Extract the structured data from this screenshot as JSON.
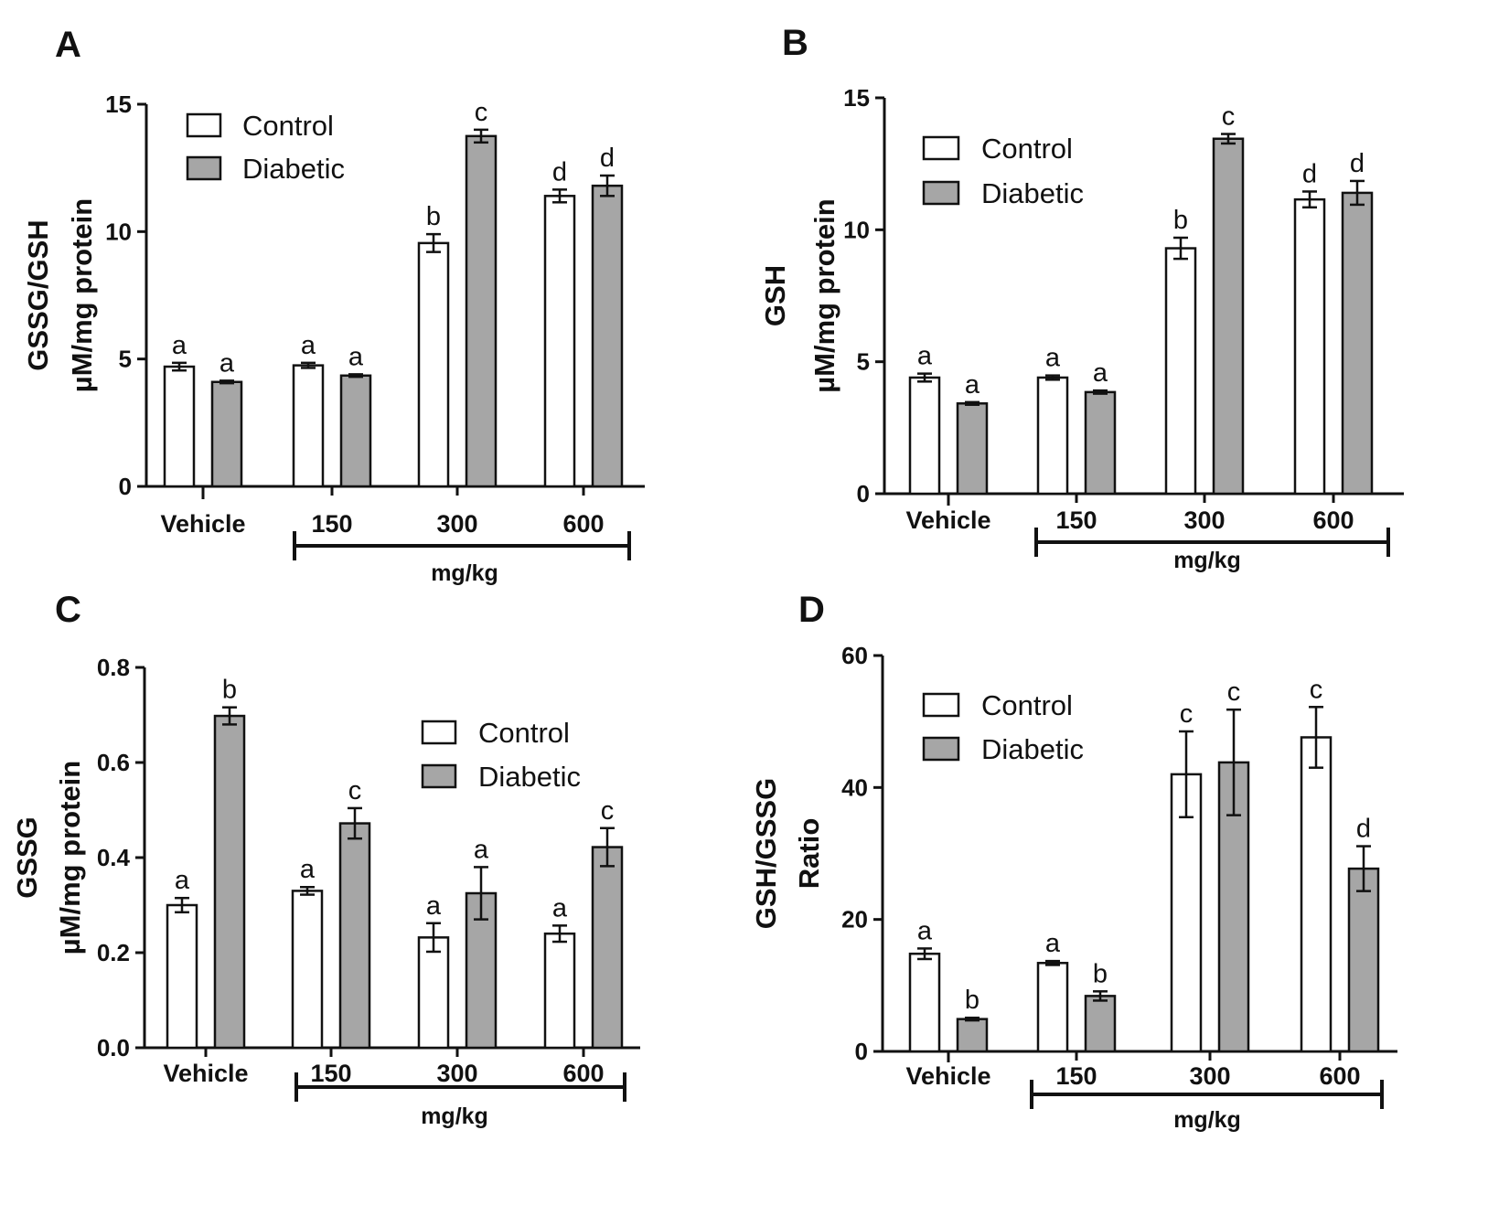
{
  "chart_data": [
    {
      "type": "bar",
      "panel": "A",
      "ylabel_lines": [
        "GSSG/GSH",
        "µM/mg protein"
      ],
      "categories": [
        "Vehicle",
        "150",
        "300",
        "600"
      ],
      "group_label": "mg/kg",
      "ylim": [
        0,
        15
      ],
      "yticks": [
        0,
        5,
        10,
        15
      ],
      "legend": "top-left",
      "series": [
        {
          "name": "Control",
          "color": "#ffffff",
          "values": [
            4.7,
            4.75,
            9.55,
            11.4
          ],
          "errors": [
            0.15,
            0.1,
            0.35,
            0.25
          ],
          "labels": [
            "a",
            "a",
            "b",
            "d"
          ]
        },
        {
          "name": "Diabetic",
          "color": "#a6a6a6",
          "values": [
            4.1,
            4.35,
            13.75,
            11.8
          ],
          "errors": [
            0.05,
            0.05,
            0.25,
            0.4
          ],
          "labels": [
            "a",
            "a",
            "c",
            "d"
          ]
        }
      ]
    },
    {
      "type": "bar",
      "panel": "B",
      "ylabel_lines": [
        "GSH",
        "µM/mg protein"
      ],
      "categories": [
        "Vehicle",
        "150",
        "300",
        "600"
      ],
      "group_label": "mg/kg",
      "ylim": [
        0,
        15
      ],
      "yticks": [
        0,
        5,
        10,
        15
      ],
      "legend": "top-left",
      "series": [
        {
          "name": "Control",
          "color": "#ffffff",
          "values": [
            4.4,
            4.4,
            9.3,
            11.15
          ],
          "errors": [
            0.15,
            0.08,
            0.4,
            0.3
          ],
          "labels": [
            "a",
            "a",
            "b",
            "d"
          ]
        },
        {
          "name": "Diabetic",
          "color": "#a6a6a6",
          "values": [
            3.42,
            3.85,
            13.45,
            11.4
          ],
          "errors": [
            0.05,
            0.06,
            0.18,
            0.45
          ],
          "labels": [
            "a",
            "a",
            "c",
            "d"
          ]
        }
      ]
    },
    {
      "type": "bar",
      "panel": "C",
      "ylabel_lines": [
        "GSSG",
        "µM/mg protein"
      ],
      "categories": [
        "Vehicle",
        "150",
        "300",
        "600"
      ],
      "group_label": "mg/kg",
      "ylim": [
        0,
        0.8
      ],
      "yticks": [
        0.0,
        0.2,
        0.4,
        0.6,
        0.8
      ],
      "tick_decimals": 1,
      "legend": "top-right",
      "series": [
        {
          "name": "Control",
          "color": "#ffffff",
          "values": [
            0.3,
            0.33,
            0.232,
            0.24
          ],
          "errors": [
            0.015,
            0.008,
            0.03,
            0.017
          ],
          "labels": [
            "a",
            "a",
            "a",
            "a"
          ]
        },
        {
          "name": "Diabetic",
          "color": "#a6a6a6",
          "values": [
            0.698,
            0.472,
            0.325,
            0.422
          ],
          "errors": [
            0.018,
            0.032,
            0.055,
            0.04
          ],
          "labels": [
            "b",
            "c",
            "a",
            "c"
          ]
        }
      ]
    },
    {
      "type": "bar",
      "panel": "D",
      "ylabel_lines": [
        "GSH/GSSG",
        "Ratio"
      ],
      "categories": [
        "Vehicle",
        "150",
        "300",
        "600"
      ],
      "group_label": "mg/kg",
      "ylim": [
        0,
        60
      ],
      "yticks": [
        0,
        20,
        40,
        60
      ],
      "legend": "top-left",
      "series": [
        {
          "name": "Control",
          "color": "#ffffff",
          "values": [
            14.8,
            13.4,
            42,
            47.6
          ],
          "errors": [
            0.8,
            0.3,
            6.5,
            4.6
          ],
          "labels": [
            "a",
            "a",
            "c",
            "c"
          ]
        },
        {
          "name": "Diabetic",
          "color": "#a6a6a6",
          "values": [
            4.9,
            8.4,
            43.8,
            27.7
          ],
          "errors": [
            0.2,
            0.7,
            8,
            3.4
          ],
          "labels": [
            "b",
            "b",
            "c",
            "d"
          ]
        }
      ]
    }
  ]
}
